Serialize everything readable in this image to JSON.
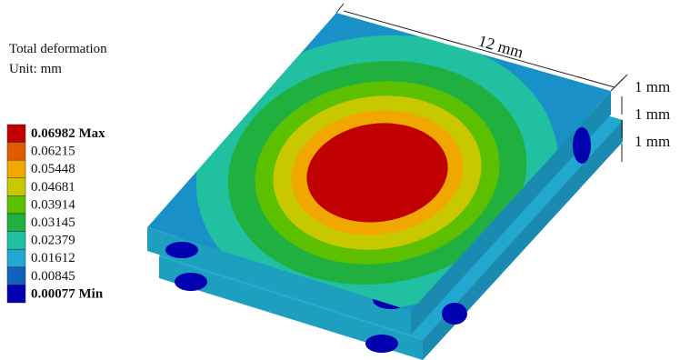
{
  "legend": {
    "title": "Total deformation",
    "unit": "Unit: mm",
    "levels": [
      {
        "label": "0.06982 Max",
        "color": "#c00000"
      },
      {
        "label": "0.06215",
        "color": "#e05a00"
      },
      {
        "label": "0.05448",
        "color": "#f0a800"
      },
      {
        "label": "0.04681",
        "color": "#c8c800"
      },
      {
        "label": "0.03914",
        "color": "#5cc000"
      },
      {
        "label": "0.03145",
        "color": "#20b040"
      },
      {
        "label": "0.02379",
        "color": "#20c0a0"
      },
      {
        "label": "0.01612",
        "color": "#20a8d0"
      },
      {
        "label": "0.00845",
        "color": "#1060c0"
      },
      {
        "label": "0.00077 Min",
        "color": "#0000b0"
      }
    ]
  },
  "dimensions": {
    "length": "12 mm",
    "thicknesses": [
      "1 mm",
      "1 mm",
      "1 mm"
    ]
  }
}
